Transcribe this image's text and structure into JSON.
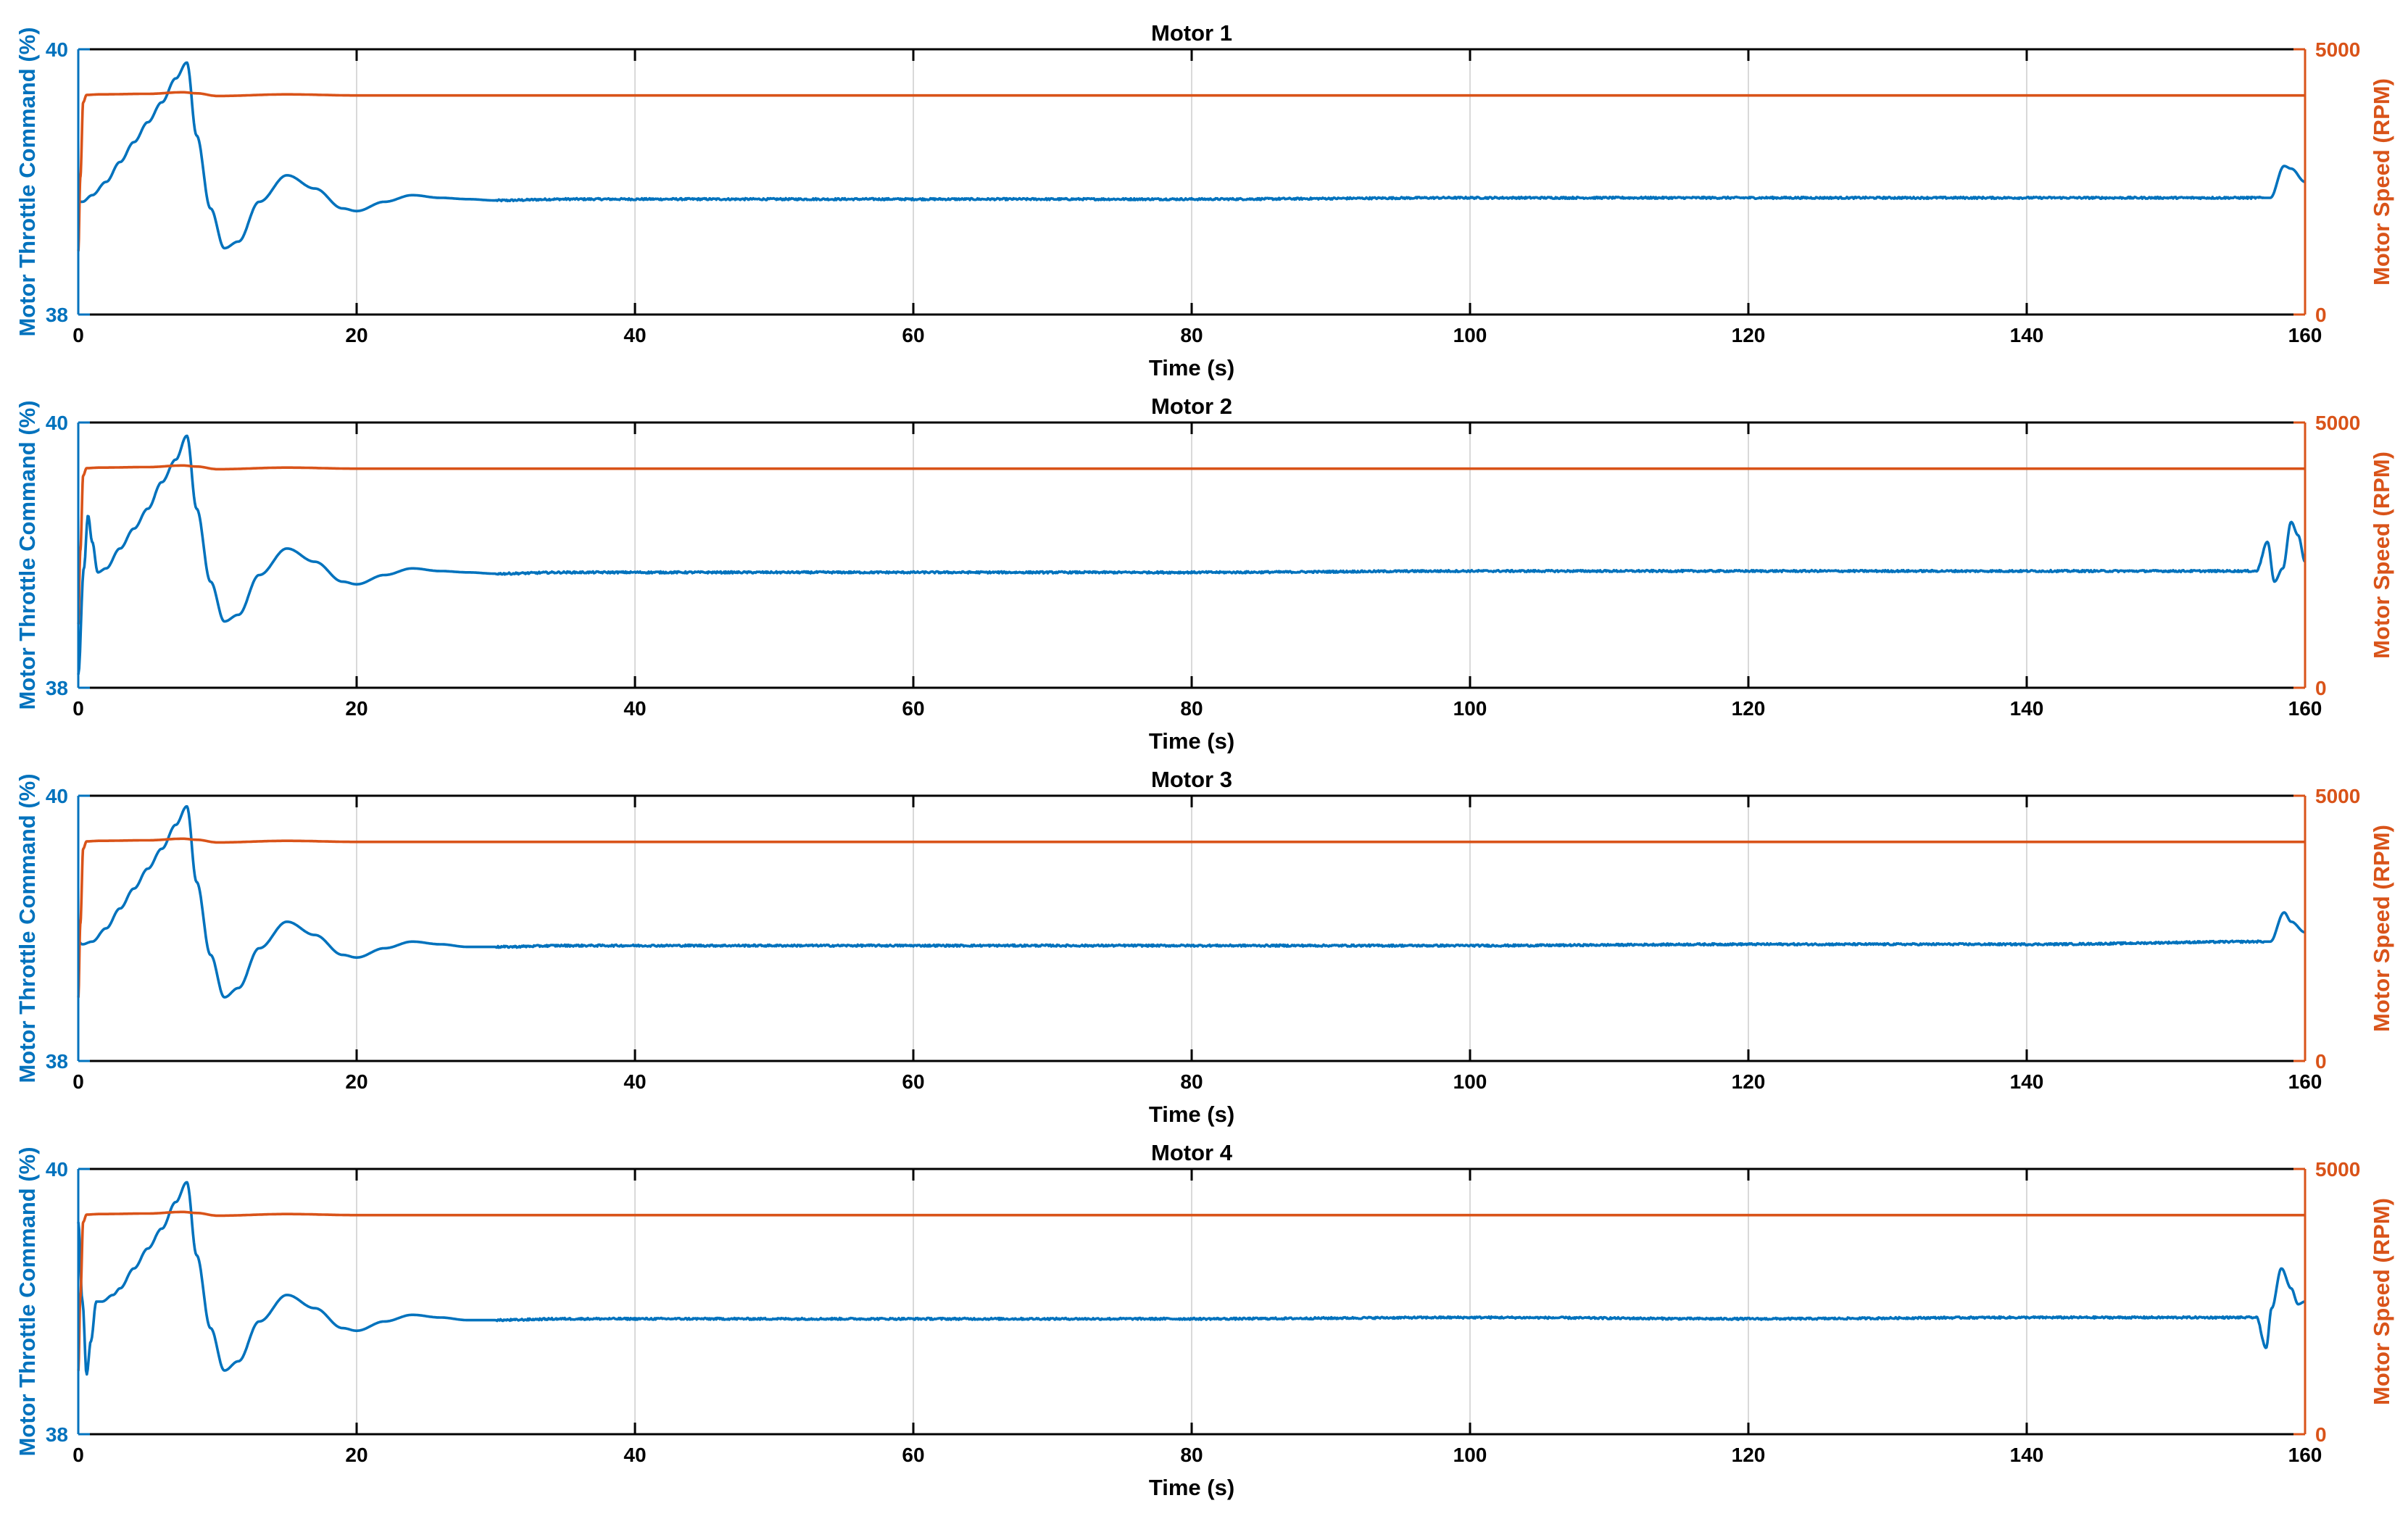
{
  "colors": {
    "throttle": "#0072BD",
    "speed": "#D95319",
    "grid": "#d9d9d9",
    "axis": "#000000"
  },
  "chart_data": [
    {
      "type": "line",
      "title": "Motor 1",
      "xlabel": "Time (s)",
      "ylabel_left": "Motor Throttle Command (%)",
      "ylabel_right": "Motor Speed (RPM)",
      "xlim": [
        0,
        160
      ],
      "ylim_left": [
        38,
        40
      ],
      "ylim_right": [
        0,
        5000
      ],
      "xticks": [
        "0",
        "20",
        "40",
        "60",
        "80",
        "100",
        "120",
        "140",
        "160"
      ],
      "yticks_left": [
        "38",
        "40"
      ],
      "yticks_right": [
        "0",
        "5000"
      ],
      "grid": "x",
      "series": [
        {
          "axis": "left",
          "x": [
            0,
            0.3,
            1,
            2,
            3,
            4,
            5,
            6,
            7,
            7.8,
            8.5,
            9.5,
            10.5,
            11.5,
            13,
            15,
            17,
            19,
            20,
            22,
            24,
            26,
            28,
            30,
            35,
            40,
            60,
            80,
            100,
            120,
            140,
            157.5,
            158.5,
            159,
            160
          ],
          "y": [
            38.85,
            38.85,
            38.9,
            39.0,
            39.15,
            39.3,
            39.45,
            39.6,
            39.78,
            39.9,
            39.35,
            38.8,
            38.5,
            38.55,
            38.85,
            39.05,
            38.95,
            38.8,
            38.78,
            38.85,
            38.9,
            38.88,
            38.87,
            38.86,
            38.87,
            38.87,
            38.87,
            38.87,
            38.88,
            38.88,
            38.88,
            38.88,
            39.12,
            39.1,
            39.0
          ],
          "noise": 0.007
        },
        {
          "axis": "right",
          "x": [
            0,
            0.15,
            0.35,
            0.6,
            1.5,
            5,
            7.5,
            8.5,
            10,
            15,
            20,
            160
          ],
          "y": [
            1200,
            2600,
            4000,
            4140,
            4150,
            4160,
            4190,
            4170,
            4120,
            4150,
            4130,
            4130
          ]
        }
      ]
    },
    {
      "type": "line",
      "title": "Motor 2",
      "xlabel": "Time (s)",
      "ylabel_left": "Motor Throttle Command (%)",
      "ylabel_right": "Motor Speed (RPM)",
      "xlim": [
        0,
        160
      ],
      "ylim_left": [
        38,
        40
      ],
      "ylim_right": [
        0,
        5000
      ],
      "xticks": [
        "0",
        "20",
        "40",
        "60",
        "80",
        "100",
        "120",
        "140",
        "160"
      ],
      "yticks_left": [
        "38",
        "40"
      ],
      "yticks_right": [
        "0",
        "5000"
      ],
      "grid": "x",
      "series": [
        {
          "axis": "left",
          "x": [
            0,
            0.4,
            0.7,
            1.0,
            1.4,
            2,
            3,
            4,
            5,
            6,
            7,
            7.8,
            8.5,
            9.5,
            10.5,
            11.5,
            13,
            15,
            17,
            19,
            20,
            22,
            24,
            26,
            28,
            30,
            35,
            40,
            60,
            80,
            100,
            120,
            140,
            156.5,
            157.3,
            157.8,
            158.4,
            159,
            159.5,
            160
          ],
          "y": [
            38.1,
            38.9,
            39.3,
            39.1,
            38.87,
            38.9,
            39.05,
            39.2,
            39.35,
            39.55,
            39.72,
            39.9,
            39.35,
            38.8,
            38.5,
            38.55,
            38.85,
            39.05,
            38.95,
            38.8,
            38.78,
            38.85,
            38.9,
            38.88,
            38.87,
            38.86,
            38.87,
            38.87,
            38.87,
            38.87,
            38.88,
            38.88,
            38.88,
            38.88,
            39.1,
            38.8,
            38.9,
            39.25,
            39.15,
            38.95
          ],
          "noise": 0.007
        },
        {
          "axis": "right",
          "x": [
            0,
            0.15,
            0.35,
            0.6,
            1.5,
            5,
            7.5,
            8.5,
            10,
            15,
            20,
            160
          ],
          "y": [
            1200,
            2600,
            4000,
            4140,
            4150,
            4160,
            4190,
            4170,
            4120,
            4150,
            4130,
            4130
          ]
        }
      ]
    },
    {
      "type": "line",
      "title": "Motor 3",
      "xlabel": "Time (s)",
      "ylabel_left": "Motor Throttle Command (%)",
      "ylabel_right": "Motor Speed (RPM)",
      "xlim": [
        0,
        160
      ],
      "ylim_left": [
        38,
        40
      ],
      "ylim_right": [
        0,
        5000
      ],
      "xticks": [
        "0",
        "20",
        "40",
        "60",
        "80",
        "100",
        "120",
        "140",
        "160"
      ],
      "yticks_left": [
        "38",
        "40"
      ],
      "yticks_right": [
        "0",
        "5000"
      ],
      "grid": "x",
      "series": [
        {
          "axis": "left",
          "x": [
            0,
            0.3,
            1,
            2,
            3,
            4,
            5,
            6,
            7,
            7.8,
            8.5,
            9.5,
            10.5,
            11.5,
            13,
            15,
            17,
            19,
            20,
            22,
            24,
            26,
            28,
            30,
            35,
            40,
            60,
            80,
            100,
            120,
            140,
            157.5,
            158.5,
            159,
            160
          ],
          "y": [
            38.9,
            38.88,
            38.9,
            39.0,
            39.15,
            39.3,
            39.45,
            39.6,
            39.78,
            39.92,
            39.35,
            38.8,
            38.48,
            38.55,
            38.85,
            39.05,
            38.95,
            38.8,
            38.78,
            38.85,
            38.9,
            38.88,
            38.86,
            38.86,
            38.87,
            38.87,
            38.87,
            38.87,
            38.87,
            38.88,
            38.88,
            38.9,
            39.12,
            39.05,
            38.97
          ],
          "noise": 0.007
        },
        {
          "axis": "right",
          "x": [
            0,
            0.15,
            0.35,
            0.6,
            1.5,
            5,
            7.5,
            8.5,
            10,
            15,
            20,
            160
          ],
          "y": [
            1200,
            2600,
            4000,
            4140,
            4150,
            4160,
            4190,
            4170,
            4120,
            4150,
            4130,
            4130
          ]
        }
      ]
    },
    {
      "type": "line",
      "title": "Motor 4",
      "xlabel": "Time (s)",
      "ylabel_left": "Motor Throttle Command (%)",
      "ylabel_right": "Motor Speed (RPM)",
      "xlim": [
        0,
        160
      ],
      "ylim_left": [
        38,
        40
      ],
      "ylim_right": [
        0,
        5000
      ],
      "xticks": [
        "0",
        "20",
        "40",
        "60",
        "80",
        "100",
        "120",
        "140",
        "160"
      ],
      "yticks_left": [
        "38",
        "40"
      ],
      "yticks_right": [
        "0",
        "5000"
      ],
      "grid": "x",
      "series": [
        {
          "axis": "left",
          "x": [
            0,
            0.3,
            0.6,
            0.9,
            1.3,
            1.7,
            2.5,
            3,
            4,
            5,
            6,
            7,
            7.8,
            8.5,
            9.5,
            10.5,
            11.5,
            13,
            15,
            17,
            19,
            20,
            22,
            24,
            26,
            28,
            30,
            35,
            40,
            60,
            80,
            100,
            120,
            140,
            156.5,
            157.2,
            157.6,
            158.3,
            159,
            159.5,
            160
          ],
          "y": [
            39.6,
            39.0,
            38.45,
            38.7,
            39.0,
            39.0,
            39.05,
            39.1,
            39.25,
            39.4,
            39.55,
            39.75,
            39.9,
            39.35,
            38.8,
            38.48,
            38.55,
            38.85,
            39.05,
            38.95,
            38.8,
            38.78,
            38.85,
            38.9,
            38.88,
            38.86,
            38.86,
            38.87,
            38.87,
            38.87,
            38.87,
            38.88,
            38.87,
            38.88,
            38.88,
            38.65,
            38.95,
            39.25,
            39.1,
            38.98,
            39.0
          ],
          "noise": 0.007
        },
        {
          "axis": "right",
          "x": [
            0,
            0.15,
            0.35,
            0.6,
            1.5,
            5,
            7.5,
            8.5,
            10,
            15,
            20,
            160
          ],
          "y": [
            1200,
            2600,
            4000,
            4140,
            4150,
            4160,
            4190,
            4170,
            4120,
            4150,
            4130,
            4130
          ]
        }
      ]
    }
  ]
}
